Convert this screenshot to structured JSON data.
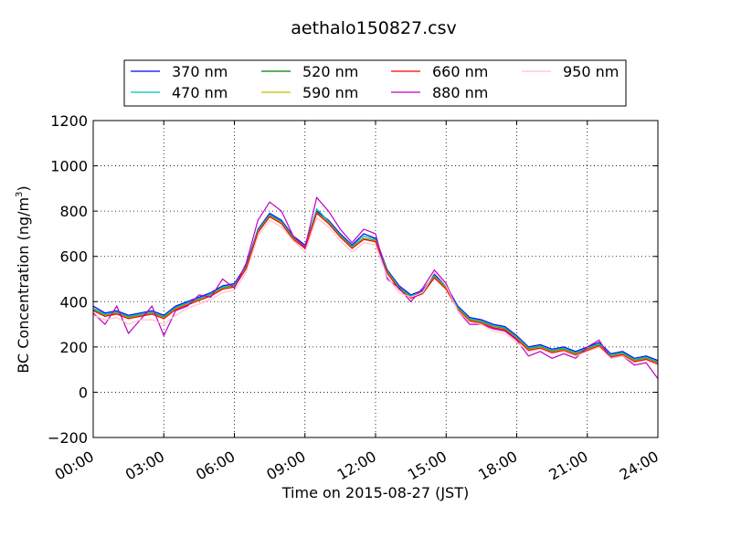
{
  "chart_data": {
    "type": "line",
    "title": "aethalo150827.csv",
    "xlabel": "Time on 2015-08-27 (JST)",
    "ylabel": "BC Concentration (ng/m",
    "ylabel_sup": "3",
    "ylabel_close": ")",
    "xlim": [
      "00:00",
      "24:00"
    ],
    "ylim": [
      -200,
      1200
    ],
    "x_ticks": [
      "00:00",
      "03:00",
      "06:00",
      "09:00",
      "12:00",
      "15:00",
      "18:00",
      "21:00",
      "24:00"
    ],
    "y_ticks": [
      "−200",
      "0",
      "200",
      "400",
      "600",
      "800",
      "1000",
      "1200"
    ],
    "grid": true,
    "legend_position": "top",
    "x": [
      "00:00",
      "00:30",
      "01:00",
      "01:30",
      "02:00",
      "02:30",
      "03:00",
      "03:30",
      "04:00",
      "04:30",
      "05:00",
      "05:30",
      "06:00",
      "06:30",
      "07:00",
      "07:30",
      "08:00",
      "08:30",
      "09:00",
      "09:30",
      "10:00",
      "10:30",
      "11:00",
      "11:30",
      "12:00",
      "12:30",
      "13:00",
      "13:30",
      "14:00",
      "14:30",
      "15:00",
      "15:30",
      "16:00",
      "16:30",
      "17:00",
      "17:30",
      "18:00",
      "18:30",
      "19:00",
      "19:30",
      "20:00",
      "20:30",
      "21:00",
      "21:30",
      "22:00",
      "22:30",
      "23:00",
      "23:30",
      "24:00"
    ],
    "series": [
      {
        "name": "370 nm",
        "color": "#0000ff",
        "values": [
          380,
          350,
          360,
          340,
          350,
          360,
          340,
          380,
          400,
          420,
          440,
          470,
          480,
          560,
          720,
          790,
          760,
          690,
          650,
          800,
          760,
          700,
          650,
          700,
          680,
          540,
          470,
          430,
          450,
          520,
          470,
          380,
          330,
          320,
          300,
          290,
          250,
          200,
          210,
          190,
          200,
          180,
          200,
          220,
          170,
          180,
          150,
          160,
          140
        ]
      },
      {
        "name": "470 nm",
        "color": "#00bfbf",
        "values": [
          370,
          345,
          355,
          335,
          345,
          355,
          335,
          375,
          395,
          415,
          435,
          465,
          475,
          555,
          715,
          785,
          755,
          685,
          645,
          810,
          755,
          695,
          645,
          690,
          675,
          535,
          465,
          425,
          445,
          515,
          465,
          375,
          325,
          315,
          295,
          285,
          245,
          195,
          205,
          185,
          195,
          175,
          195,
          215,
          165,
          175,
          145,
          155,
          135
        ]
      },
      {
        "name": "520 nm",
        "color": "#008000",
        "values": [
          365,
          340,
          350,
          330,
          340,
          350,
          330,
          370,
          390,
          410,
          430,
          460,
          470,
          550,
          710,
          780,
          750,
          680,
          640,
          795,
          750,
          690,
          640,
          680,
          670,
          530,
          460,
          420,
          440,
          510,
          460,
          370,
          320,
          310,
          290,
          280,
          240,
          190,
          200,
          180,
          190,
          170,
          190,
          210,
          160,
          170,
          140,
          150,
          130
        ]
      },
      {
        "name": "590 nm",
        "color": "#bfbf00",
        "values": [
          362,
          338,
          348,
          328,
          338,
          348,
          328,
          368,
          388,
          408,
          428,
          458,
          468,
          548,
          708,
          778,
          748,
          678,
          638,
          793,
          748,
          688,
          638,
          678,
          668,
          528,
          458,
          418,
          438,
          508,
          458,
          368,
          318,
          308,
          288,
          278,
          238,
          188,
          198,
          178,
          188,
          168,
          188,
          208,
          158,
          168,
          138,
          148,
          128
        ]
      },
      {
        "name": "660 nm",
        "color": "#ff0000",
        "values": [
          360,
          335,
          345,
          325,
          335,
          345,
          325,
          365,
          385,
          405,
          425,
          455,
          465,
          545,
          705,
          775,
          745,
          675,
          635,
          790,
          745,
          685,
          635,
          675,
          665,
          525,
          455,
          415,
          435,
          505,
          455,
          365,
          315,
          305,
          285,
          275,
          235,
          185,
          195,
          175,
          185,
          165,
          185,
          205,
          155,
          165,
          135,
          145,
          125
        ]
      },
      {
        "name": "880 nm",
        "color": "#bf00bf",
        "values": [
          350,
          300,
          380,
          260,
          320,
          380,
          250,
          360,
          380,
          430,
          420,
          500,
          460,
          570,
          760,
          840,
          800,
          690,
          640,
          860,
          800,
          720,
          660,
          720,
          700,
          500,
          460,
          400,
          460,
          540,
          480,
          360,
          300,
          300,
          280,
          270,
          230,
          160,
          180,
          150,
          170,
          150,
          200,
          230,
          150,
          160,
          120,
          130,
          60
        ]
      },
      {
        "name": "950 nm",
        "color": "#ffc0cb",
        "values": [
          340,
          320,
          330,
          300,
          320,
          320,
          300,
          340,
          370,
          390,
          410,
          440,
          450,
          530,
          690,
          760,
          730,
          670,
          620,
          770,
          730,
          670,
          620,
          660,
          650,
          510,
          440,
          420,
          440,
          530,
          470,
          360,
          310,
          300,
          270,
          260,
          220,
          180,
          190,
          170,
          180,
          160,
          180,
          200,
          150,
          160,
          130,
          140,
          120
        ]
      }
    ]
  }
}
